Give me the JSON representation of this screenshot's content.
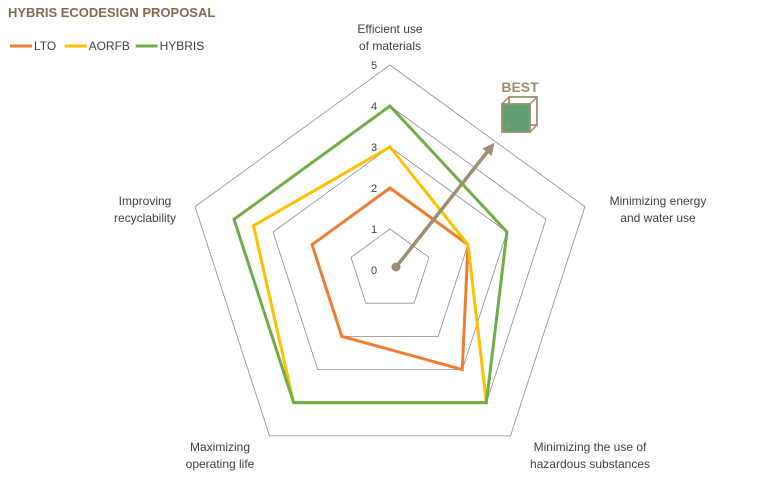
{
  "chart_data": {
    "type": "radar",
    "title": "HYBRIS ECODESIGN PROPOSAL",
    "axes": [
      [
        "Efficient use",
        "of materials"
      ],
      [
        "Minimizing energy",
        "and water use"
      ],
      [
        "Minimizing the use of",
        "hazardous substances"
      ],
      [
        "Maximizing",
        "operating life"
      ],
      [
        "Improving",
        "recyclability"
      ]
    ],
    "ticks": [
      "0",
      "1",
      "2",
      "3",
      "4",
      "5"
    ],
    "range": [
      0,
      5
    ],
    "series": [
      {
        "name": "LTO",
        "color": "#ED7D31",
        "values": [
          2,
          2,
          3,
          2,
          2
        ]
      },
      {
        "name": "AORFB",
        "color": "#FFC000",
        "values": [
          3,
          2,
          4,
          4,
          3.5
        ]
      },
      {
        "name": "HYBRIS",
        "color": "#70AD47",
        "values": [
          4,
          3,
          4,
          4,
          4
        ]
      }
    ],
    "legend_position": "top-left",
    "annotation": {
      "label": "BEST",
      "color": "#9C8F73",
      "fill": "#5FA06E"
    },
    "grid": true
  }
}
